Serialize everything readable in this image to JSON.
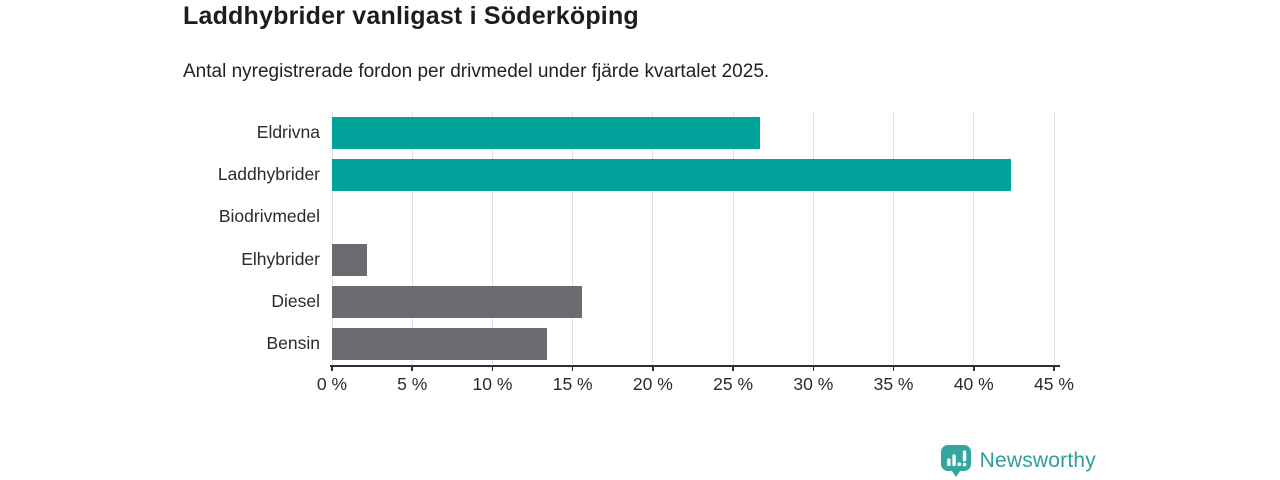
{
  "chart_data": {
    "type": "bar",
    "orientation": "horizontal",
    "title": "Laddhybrider vanligast i Söderköping",
    "subtitle": "Antal nyregistrerade fordon per drivmedel under fjärde kvartalet 2025.",
    "categories": [
      "Eldrivna",
      "Laddhybrider",
      "Biodrivmedel",
      "Elhybrider",
      "Diesel",
      "Bensin"
    ],
    "values": [
      26.7,
      42.3,
      0,
      2.2,
      15.6,
      13.4
    ],
    "unit": "%",
    "bar_colors": [
      "#00a29a",
      "#00a29a",
      "#6c6b71",
      "#6c6b71",
      "#6c6b71",
      "#6c6b71"
    ],
    "xlim": [
      0,
      45
    ],
    "ticks": [
      0,
      5,
      10,
      15,
      20,
      25,
      30,
      35,
      40,
      45
    ],
    "tick_labels": [
      "0 %",
      "5 %",
      "10 %",
      "15 %",
      "20 %",
      "25 %",
      "30 %",
      "35 %",
      "40 %",
      "45 %"
    ],
    "grid": true,
    "legend": false,
    "colors": {
      "highlight_teal": "#00a29a",
      "neutral_gray": "#6c6b71",
      "gridline": "#e2e2e2",
      "axis": "#2f2f2f",
      "text": "#2b2b2b"
    }
  },
  "branding": {
    "logo_text": "Newsworthy",
    "logo_icon": "bar-chart-pin-icon",
    "logo_color": "#2f9e98",
    "logo_badge_color": "#35a69e"
  }
}
